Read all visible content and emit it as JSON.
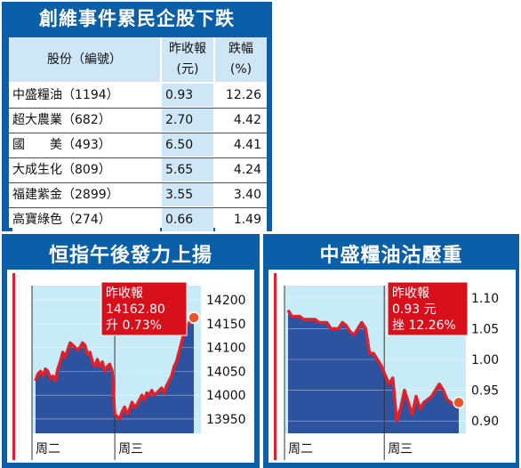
{
  "table": {
    "title": "創維事件累民企股下跌",
    "headers": {
      "stock": "股份（編號）",
      "close_l1": "昨收報",
      "close_l2": "(元)",
      "pct_l1": "跌幅",
      "pct_l2": "(%)"
    },
    "rows": [
      {
        "name": "中盛糧油（1194）",
        "close": "0.93",
        "pct": "12.26"
      },
      {
        "name": "超大農業（682）",
        "close": "2.70",
        "pct": "4.42"
      },
      {
        "name": "國　　美（493）",
        "close": "6.50",
        "pct": "4.41"
      },
      {
        "name": "大成生化（809）",
        "close": "5.65",
        "pct": "4.24"
      },
      {
        "name": "福建紫金（2899）",
        "close": "3.55",
        "pct": "3.40"
      },
      {
        "name": "高寶綠色（274）",
        "close": "0.66",
        "pct": "1.49"
      }
    ]
  },
  "chart_data": [
    {
      "type": "line",
      "title": "恒指午後發力上揚",
      "x_labels": [
        "周二",
        "周三"
      ],
      "ylim": [
        13920,
        14230
      ],
      "y_ticks": [
        14200,
        14150,
        14100,
        14050,
        14000,
        13950
      ],
      "annotation": {
        "l1": "昨收報",
        "l2": "14162.80",
        "l3": "升 0.73%"
      },
      "colors": {
        "line": "#e0202a",
        "background": "#2d52a0",
        "hilite": "#c8ecf7"
      },
      "series": [
        {
          "values": [
            14030,
            14045,
            14050,
            14040,
            14055,
            14050,
            14035,
            14040,
            14030,
            14055,
            14070,
            14090,
            14080,
            14095,
            14110,
            14105,
            14100,
            14095,
            14100,
            14110,
            14105,
            14085,
            14090,
            14070,
            14060,
            14075,
            14060,
            14070,
            14050,
            14060,
            14065,
            14050,
            13960,
            13955,
            13950,
            13965,
            13975,
            13960,
            13970,
            13985,
            13975,
            13980,
            13990,
            14000,
            13990,
            14005,
            14000,
            14010,
            14000,
            14005,
            14010,
            14015,
            14005,
            14020,
            14030,
            14040,
            14060,
            14070,
            14090,
            14110,
            14130,
            14145,
            14150,
            14160,
            14162.8
          ]
        }
      ]
    },
    {
      "type": "line",
      "title": "中盛糧油沽壓重",
      "x_labels": [
        "周二",
        "周三"
      ],
      "ylim": [
        0.88,
        1.12
      ],
      "y_ticks": [
        "1.10",
        "1.05",
        "1.00",
        "0.95",
        "0.90"
      ],
      "annotation": {
        "l1": "昨收報",
        "l2": "0.93 元",
        "l3": "挫 12.26%"
      },
      "colors": {
        "line": "#e0202a",
        "background": "#2d52a0",
        "hilite": "#c8ecf7"
      },
      "series": [
        {
          "values": [
            1.08,
            1.07,
            1.07,
            1.07,
            1.065,
            1.065,
            1.065,
            1.065,
            1.06,
            1.06,
            1.06,
            1.05,
            1.05,
            1.05,
            1.06,
            1.055,
            1.045,
            1.04,
            1.05,
            1.06,
            1.05,
            1.01,
            1.01,
            1.0,
            0.99,
            0.975,
            0.96,
            0.97,
            0.9,
            0.92,
            0.95,
            0.93,
            0.91,
            0.94,
            0.92,
            0.93,
            0.935,
            0.94,
            0.95,
            0.96,
            0.95,
            0.935,
            0.93,
            0.925,
            0.93
          ]
        }
      ]
    }
  ]
}
